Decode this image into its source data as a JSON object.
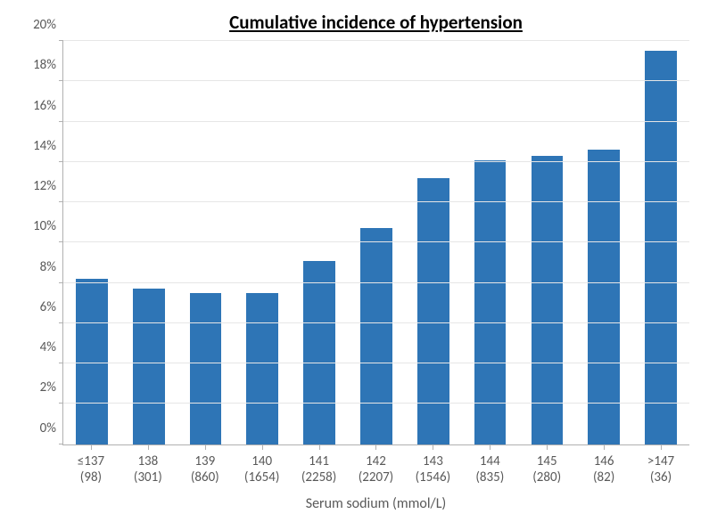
{
  "chart": {
    "type": "bar",
    "title": "Cumulative incidence of hypertension",
    "title_fontsize": 21,
    "x_axis_title": "Serum sodium (mmol/L)",
    "x_axis_title_fontsize": 16,
    "categories": [
      {
        "label": "≤137",
        "sub": "(98)"
      },
      {
        "label": "138",
        "sub": "(301)"
      },
      {
        "label": "139",
        "sub": "(860)"
      },
      {
        "label": "140",
        "sub": "(1654)"
      },
      {
        "label": "141",
        "sub": "(2258)"
      },
      {
        "label": "142",
        "sub": "(2207)"
      },
      {
        "label": "143",
        "sub": "(1546)"
      },
      {
        "label": "144",
        "sub": "(835)"
      },
      {
        "label": "145",
        "sub": "(280)"
      },
      {
        "label": "146",
        "sub": "(82)"
      },
      {
        "label": ">147",
        "sub": "(36)"
      }
    ],
    "values": [
      8.2,
      7.7,
      7.5,
      7.5,
      9.1,
      10.7,
      13.2,
      14.1,
      14.3,
      14.6,
      19.5
    ],
    "bar_color": "#2e75b6",
    "ylim": [
      0,
      20
    ],
    "ytick_step": 2,
    "ytick_suffix": "%",
    "tick_fontsize": 15,
    "xlabel_fontsize": 15,
    "background_color": "#ffffff",
    "grid_color": "#e6e6e6",
    "axis_color": "#b0b0b0",
    "tick_label_color": "#595959",
    "bar_width_ratio": 0.56
  }
}
